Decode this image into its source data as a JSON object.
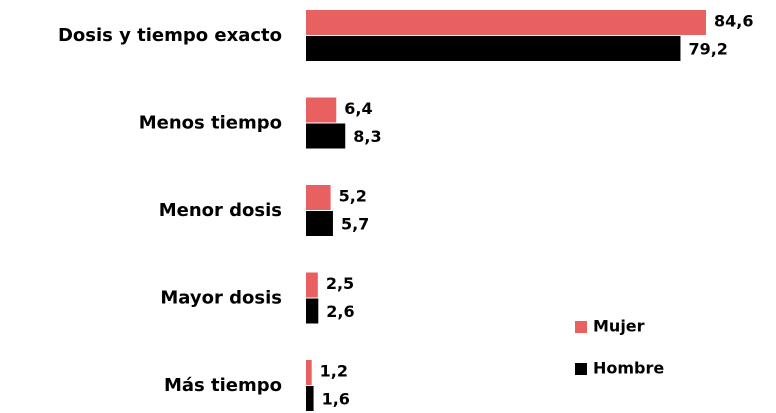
{
  "chart_data": {
    "type": "hbar",
    "categories": [
      "Dosis y tiempo exacto",
      "Menos tiempo",
      "Menor dosis",
      "Mayor dosis",
      "Más tiempo"
    ],
    "series": [
      {
        "name": "Mujer",
        "color": "#e8605f",
        "values": [
          84.6,
          6.4,
          5.2,
          2.5,
          1.2
        ],
        "value_labels": [
          "84,6",
          "6,4",
          "5,2",
          "2,5",
          "1,2"
        ]
      },
      {
        "name": "Hombre",
        "color": "#000000",
        "values": [
          79.2,
          8.3,
          5.7,
          2.6,
          1.6
        ],
        "value_labels": [
          "79,2",
          "8,3",
          "5,7",
          "2,6",
          "1,6"
        ]
      }
    ],
    "legend": "lower right"
  }
}
